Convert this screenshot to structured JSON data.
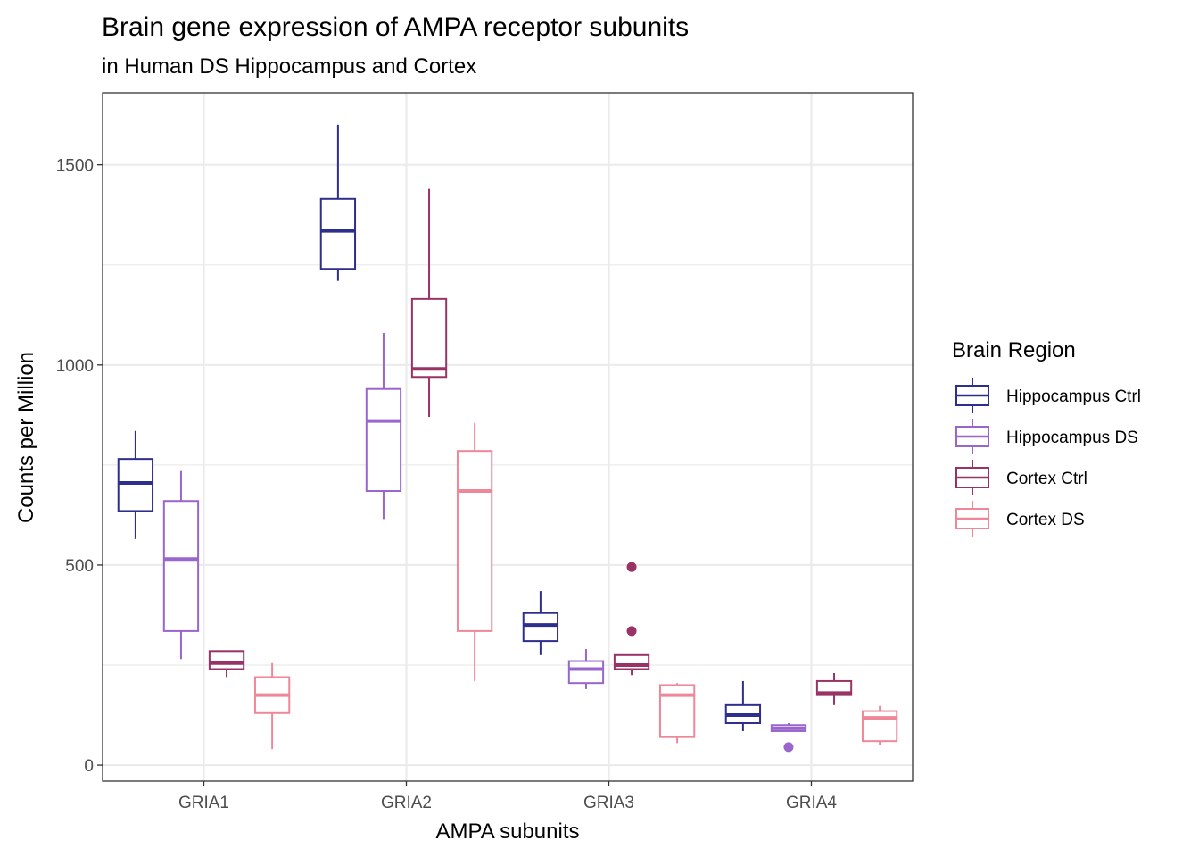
{
  "chart_data": {
    "type": "boxplot",
    "title": "Brain gene expression of AMPA receptor subunits",
    "subtitle": "in Human DS Hippocampus and Cortex",
    "xlabel": "AMPA subunits",
    "ylabel": "Counts per Million",
    "ylim": [
      -40,
      1680
    ],
    "y_ticks": [
      0,
      500,
      1000,
      1500
    ],
    "y_tick_labels": [
      "0",
      "500",
      "1000",
      "1500"
    ],
    "grid": true,
    "legend_title": "Brain Region",
    "legend_position": "right",
    "categories": [
      "GRIA1",
      "GRIA2",
      "GRIA3",
      "GRIA4"
    ],
    "series": [
      {
        "name": "Hippocampus Ctrl",
        "color": "#2e2e8c",
        "boxes": [
          {
            "min": 565,
            "q1": 635,
            "median": 705,
            "q3": 765,
            "max": 835,
            "outliers": []
          },
          {
            "min": 1210,
            "q1": 1240,
            "median": 1335,
            "q3": 1415,
            "max": 1600,
            "outliers": []
          },
          {
            "min": 275,
            "q1": 310,
            "median": 350,
            "q3": 380,
            "max": 435,
            "outliers": []
          },
          {
            "min": 85,
            "q1": 105,
            "median": 125,
            "q3": 150,
            "max": 210,
            "outliers": []
          }
        ]
      },
      {
        "name": "Hippocampus DS",
        "color": "#9966cc",
        "boxes": [
          {
            "min": 265,
            "q1": 335,
            "median": 515,
            "q3": 660,
            "max": 735,
            "outliers": []
          },
          {
            "min": 615,
            "q1": 685,
            "median": 860,
            "q3": 940,
            "max": 1080,
            "outliers": []
          },
          {
            "min": 190,
            "q1": 205,
            "median": 240,
            "q3": 260,
            "max": 290,
            "outliers": []
          },
          {
            "min": 85,
            "q1": 85,
            "median": 92,
            "q3": 100,
            "max": 105,
            "outliers": [
              45
            ]
          }
        ]
      },
      {
        "name": "Cortex Ctrl",
        "color": "#993366",
        "boxes": [
          {
            "min": 220,
            "q1": 240,
            "median": 255,
            "q3": 285,
            "max": 285,
            "outliers": []
          },
          {
            "min": 870,
            "q1": 970,
            "median": 990,
            "q3": 1165,
            "max": 1440,
            "outliers": []
          },
          {
            "min": 225,
            "q1": 240,
            "median": 250,
            "q3": 275,
            "max": 275,
            "outliers": [
              495,
              335
            ]
          },
          {
            "min": 150,
            "q1": 175,
            "median": 180,
            "q3": 210,
            "max": 230,
            "outliers": []
          }
        ]
      },
      {
        "name": "Cortex DS",
        "color": "#ee8899",
        "boxes": [
          {
            "min": 40,
            "q1": 130,
            "median": 175,
            "q3": 220,
            "max": 255,
            "outliers": []
          },
          {
            "min": 210,
            "q1": 335,
            "median": 685,
            "q3": 785,
            "max": 855,
            "outliers": []
          },
          {
            "min": 55,
            "q1": 70,
            "median": 175,
            "q3": 200,
            "max": 205,
            "outliers": []
          },
          {
            "min": 50,
            "q1": 60,
            "median": 118,
            "q3": 135,
            "max": 148,
            "outliers": []
          }
        ]
      }
    ]
  }
}
